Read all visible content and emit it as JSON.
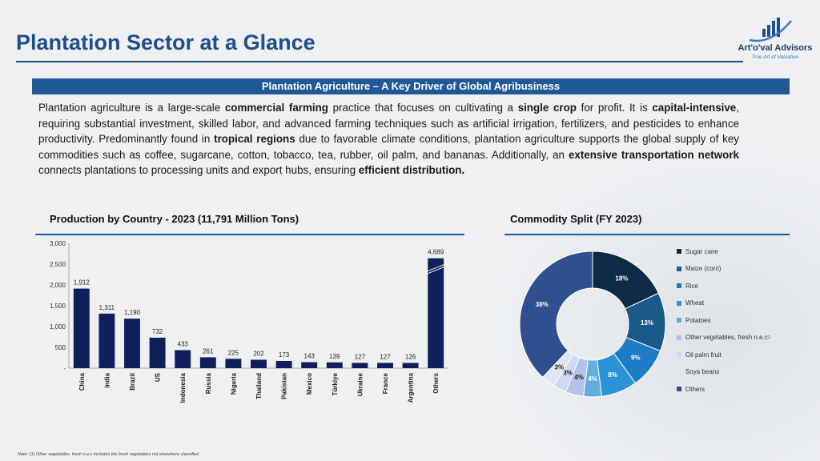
{
  "header": {
    "title": "Plantation Sector at a Glance",
    "logo_name": "Art'o'val Advisors",
    "logo_tagline": "True Art of Valuation"
  },
  "banner": "Plantation Agriculture – A Key Driver of Global Agribusiness",
  "paragraph": [
    {
      "t": "Plantation agriculture is a large-scale ",
      "b": false
    },
    {
      "t": "commercial farming",
      "b": true
    },
    {
      "t": " practice that focuses on cultivating a ",
      "b": false
    },
    {
      "t": "single crop",
      "b": true
    },
    {
      "t": " for profit. It is ",
      "b": false
    },
    {
      "t": "capital-intensive",
      "b": true
    },
    {
      "t": ", requiring substantial investment, skilled labor, and advanced farming techniques such as artificial irrigation, fertilizers, and pesticides to enhance productivity. Predominantly found in ",
      "b": false
    },
    {
      "t": "tropical regions",
      "b": true
    },
    {
      "t": " due to favorable climate conditions, plantation agriculture supports the global supply of key commodities such as coffee, sugarcane, cotton, tobacco, tea, rubber, oil palm, and bananas. Additionally, an ",
      "b": false
    },
    {
      "t": "extensive transportation network",
      "b": true
    },
    {
      "t": " connects plantations to processing units and export hubs, ensuring ",
      "b": false
    },
    {
      "t": "efficient distribution.",
      "b": true
    }
  ],
  "colors": {
    "accent": "#1f4e8c",
    "bar": "#0f1f5c"
  },
  "chart_data": [
    {
      "type": "bar",
      "title": "Production by Country - 2023 (11,791 Million Tons)",
      "categories": [
        "China",
        "India",
        "Brazil",
        "US",
        "Indonesia",
        "Russia",
        "Nigeria",
        "Thailand",
        "Pakistan",
        "Mexico",
        "Türkiye",
        "Ukraine",
        "France",
        "Argentina",
        "Others"
      ],
      "values": [
        1912,
        1311,
        1190,
        732,
        433,
        261,
        225,
        202,
        173,
        143,
        139,
        127,
        127,
        126,
        4689
      ],
      "value_labels": [
        "1,912",
        "1,311",
        "1,190",
        "732",
        "433",
        "261",
        "225",
        "202",
        "173",
        "143",
        "139",
        "127",
        "127",
        "126",
        "4,689"
      ],
      "yticks": [
        "-",
        "500",
        "1,000",
        "1,500",
        "2,000",
        "2,500",
        "3,000"
      ],
      "ylim": [
        0,
        3000
      ],
      "axis_break_category": "Others",
      "grid": false
    },
    {
      "type": "pie",
      "donut": true,
      "title": "Commodity Split (FY 2023)",
      "labels": [
        "Sugar cane",
        "Maize (corn)",
        "Rice",
        "Wheat",
        "Potatoes",
        "Other vegetables, fresh n.e.c",
        "Oil palm fruit",
        "Soya beans",
        "Others"
      ],
      "values": [
        18,
        13,
        9,
        8,
        4,
        4,
        3,
        3,
        38
      ],
      "value_labels": [
        "18%",
        "13%",
        "9%",
        "8%",
        "4%",
        "4%",
        "3%",
        "3%",
        "38%"
      ],
      "colors": [
        "#0f2a47",
        "#1a5a8a",
        "#1f7bc4",
        "#2b94d6",
        "#5fb0e0",
        "#b3c2e6",
        "#cfd9f2",
        "#dfe5f5",
        "#2f4f8f"
      ],
      "legend_note_mark": "1",
      "legend_placement": "right"
    }
  ],
  "footnote": "Note: (1) Other vegetables, fresh n.e.c includes the fresh vegetables not elsewhere classified"
}
